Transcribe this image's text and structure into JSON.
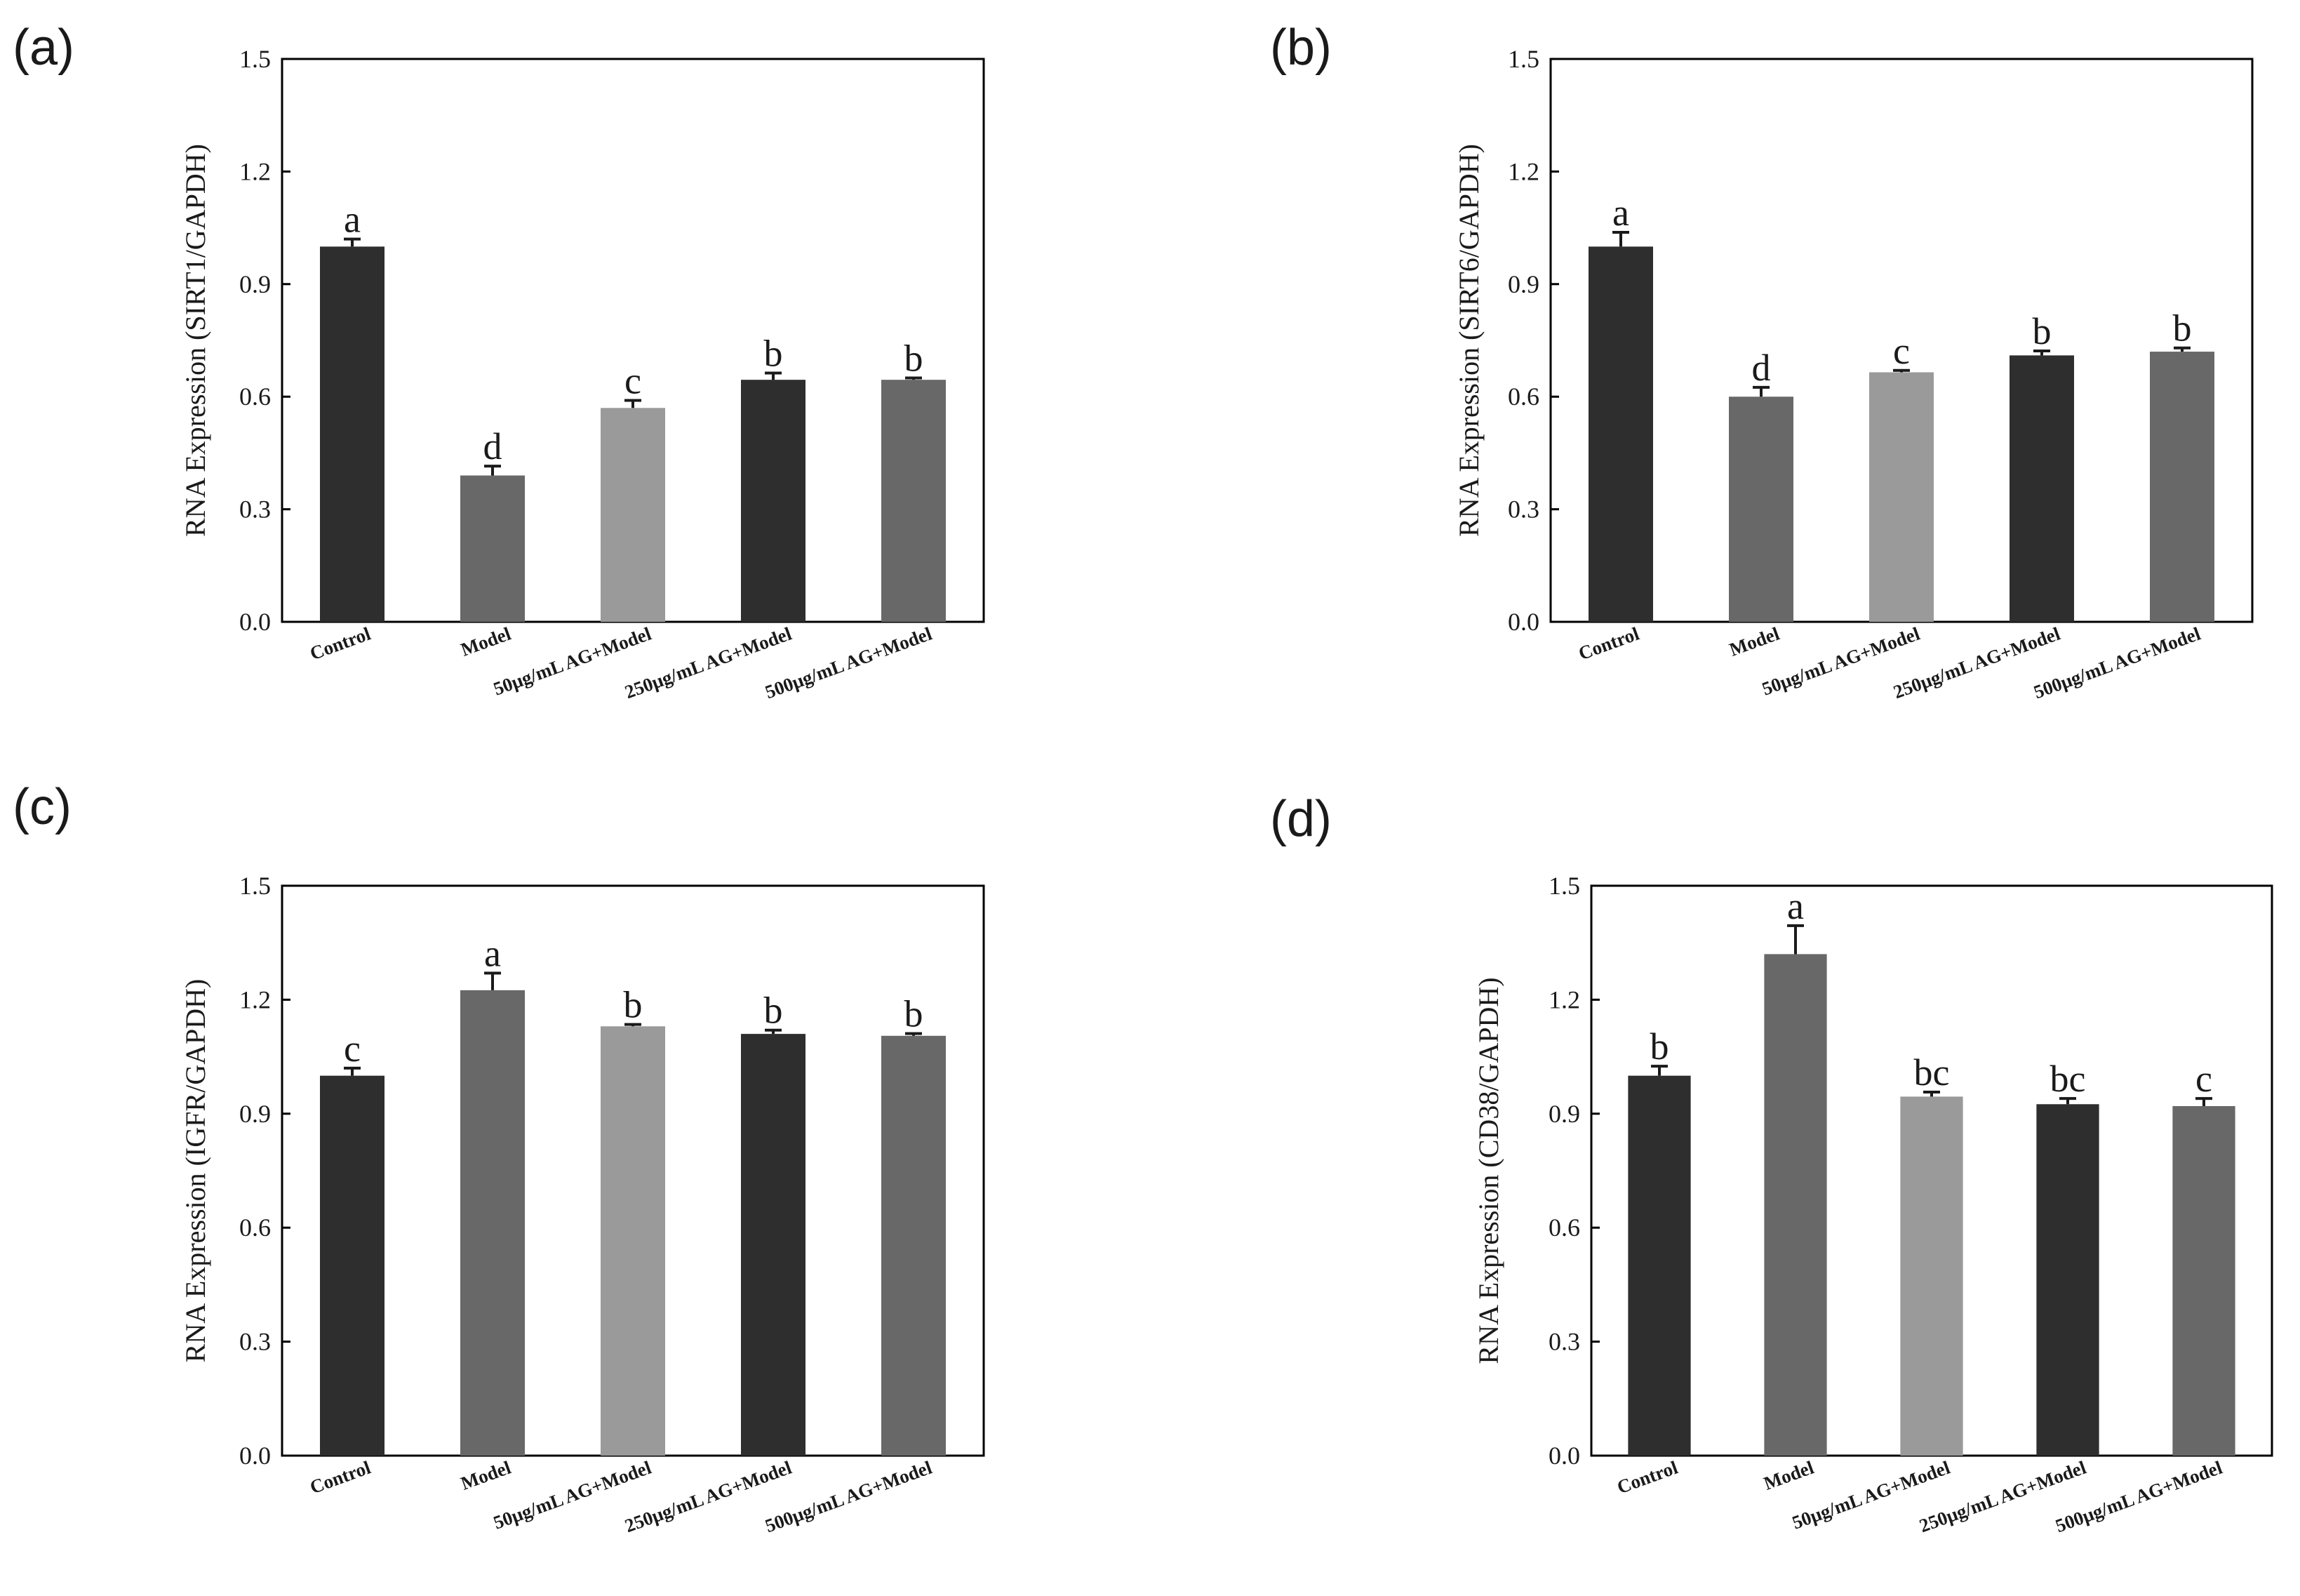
{
  "colors": {
    "dark": "#2e2e2e",
    "medium": "#686868",
    "light": "#9a9a9a"
  },
  "chart_data": [
    {
      "panel": "(a)",
      "type": "bar",
      "ylabel": "RNA Expression (SIRT1/GAPDH)",
      "ylim": [
        0,
        1.5
      ],
      "yticks": [
        "0.0",
        "0.3",
        "0.6",
        "0.9",
        "1.2",
        "1.5"
      ],
      "categories": [
        "Control",
        "Model",
        "50μg/mL AG+Model",
        "250μg/mL AG+Model",
        "500μg/mL AG+Model"
      ],
      "values": [
        1.0,
        0.39,
        0.57,
        0.645,
        0.645
      ],
      "errors": [
        0.02,
        0.025,
        0.02,
        0.018,
        0.005
      ],
      "significance": [
        "a",
        "d",
        "c",
        "b",
        "b"
      ],
      "bar_shades": [
        "dark",
        "medium",
        "light",
        "dark",
        "medium"
      ]
    },
    {
      "panel": "(b)",
      "type": "bar",
      "ylabel": "RNA Expression (SIRT6/GAPDH)",
      "ylim": [
        0,
        1.5
      ],
      "yticks": [
        "0.0",
        "0.3",
        "0.6",
        "0.9",
        "1.2",
        "1.5"
      ],
      "categories": [
        "Control",
        "Model",
        "50μg/mL AG+Model",
        "250μg/mL AG+Model",
        "500μg/mL AG+Model"
      ],
      "values": [
        1.0,
        0.6,
        0.665,
        0.71,
        0.72
      ],
      "errors": [
        0.038,
        0.025,
        0.005,
        0.012,
        0.01
      ],
      "significance": [
        "a",
        "d",
        "c",
        "b",
        "b"
      ],
      "bar_shades": [
        "dark",
        "medium",
        "light",
        "dark",
        "medium"
      ]
    },
    {
      "panel": "(c)",
      "type": "bar",
      "ylabel": "RNA Expression (IGFR/GAPDH)",
      "ylim": [
        0,
        1.5
      ],
      "yticks": [
        "0.0",
        "0.3",
        "0.6",
        "0.9",
        "1.2",
        "1.5"
      ],
      "categories": [
        "Control",
        "Model",
        "50μg/mL AG+Model",
        "250μg/mL AG+Model",
        "500μg/mL AG+Model"
      ],
      "values": [
        1.0,
        1.225,
        1.13,
        1.11,
        1.105
      ],
      "errors": [
        0.02,
        0.045,
        0.005,
        0.01,
        0.006
      ],
      "significance": [
        "c",
        "a",
        "b",
        "b",
        "b"
      ],
      "bar_shades": [
        "dark",
        "medium",
        "light",
        "dark",
        "medium"
      ]
    },
    {
      "panel": "(d)",
      "type": "bar",
      "ylabel": "RNA Expression (CD38/GAPDH)",
      "ylim": [
        0,
        1.5
      ],
      "yticks": [
        "0.0",
        "0.3",
        "0.6",
        "0.9",
        "1.2",
        "1.5"
      ],
      "categories": [
        "Control",
        "Model",
        "50μg/mL AG+Model",
        "250μg/mL AG+Model",
        "500μg/mL AG+Model"
      ],
      "values": [
        1.0,
        1.32,
        0.945,
        0.925,
        0.92
      ],
      "errors": [
        0.025,
        0.075,
        0.012,
        0.015,
        0.02
      ],
      "significance": [
        "b",
        "a",
        "bc",
        "bc",
        "c"
      ],
      "bar_shades": [
        "dark",
        "medium",
        "light",
        "dark",
        "medium"
      ]
    }
  ]
}
